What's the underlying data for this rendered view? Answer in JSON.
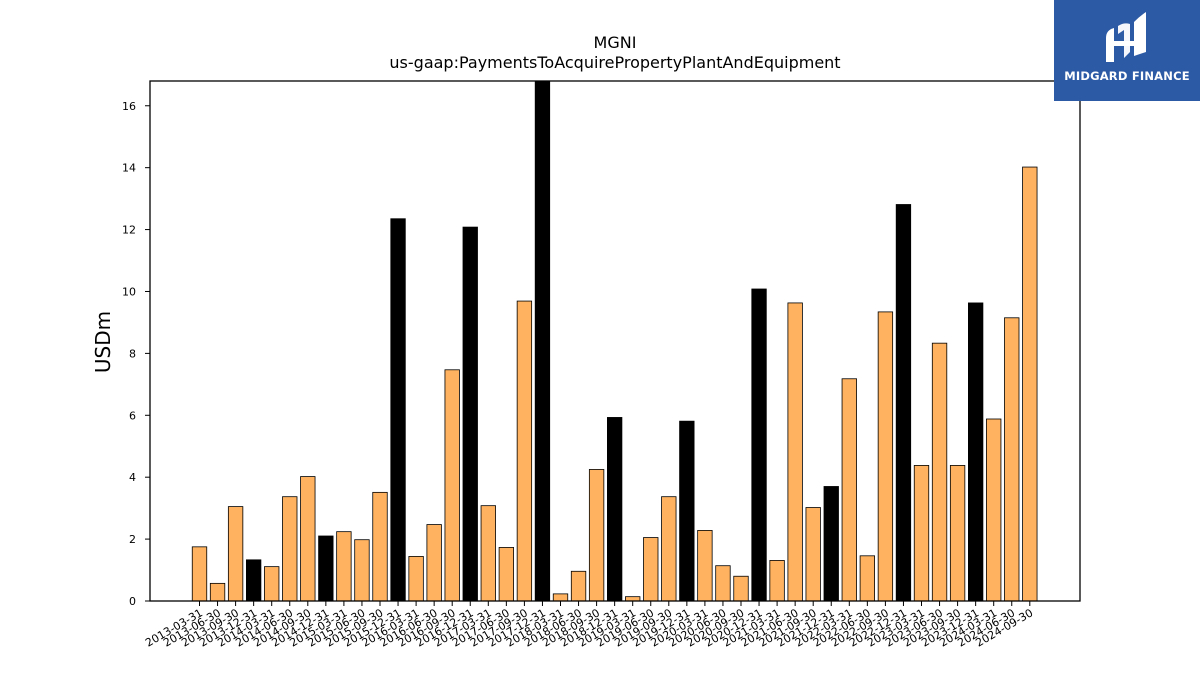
{
  "brand": {
    "name": "MIDGARD FINANCE",
    "bg_color": "#2d5aa5"
  },
  "colors": {
    "annual": "#000000",
    "quarterly": "#ffb361",
    "edge": "#000000"
  },
  "chart_data": {
    "type": "bar",
    "title": "MGNI",
    "subtitle": "us-gaap:PaymentsToAcquirePropertyPlantAndEquipment",
    "xlabel": "",
    "ylabel": "USDm",
    "ylim": [
      0,
      16.8
    ],
    "yticks": [
      0,
      2,
      4,
      6,
      8,
      10,
      12,
      14,
      16
    ],
    "grid": false,
    "categories": [
      "2013-03-31",
      "2013-06-30",
      "2013-09-30",
      "2013-12-31",
      "2014-03-31",
      "2014-06-30",
      "2014-09-30",
      "2014-12-31",
      "2015-03-31",
      "2015-06-30",
      "2015-09-30",
      "2015-12-31",
      "2016-03-31",
      "2016-06-30",
      "2016-09-30",
      "2016-12-31",
      "2017-03-31",
      "2017-06-30",
      "2017-09-30",
      "2017-12-31",
      "2018-03-31",
      "2018-06-30",
      "2018-09-30",
      "2018-12-31",
      "2019-03-31",
      "2019-06-30",
      "2019-09-30",
      "2019-12-31",
      "2020-03-31",
      "2020-06-30",
      "2020-09-30",
      "2020-12-31",
      "2021-03-31",
      "2021-06-30",
      "2021-09-30",
      "2021-12-31",
      "2022-03-31",
      "2022-06-30",
      "2022-09-30",
      "2022-12-31",
      "2023-03-31",
      "2023-06-30",
      "2023-09-30",
      "2023-12-31",
      "2024-03-31",
      "2024-06-30",
      "2024-09-30"
    ],
    "values": [
      1.75,
      0.57,
      3.05,
      1.33,
      1.11,
      3.37,
      4.02,
      2.1,
      2.24,
      1.98,
      3.51,
      12.35,
      1.44,
      2.47,
      7.47,
      12.08,
      3.08,
      1.73,
      9.69,
      16.8,
      0.23,
      0.96,
      4.25,
      5.93,
      0.14,
      2.05,
      3.37,
      5.81,
      2.28,
      1.14,
      0.8,
      10.08,
      1.31,
      9.63,
      3.02,
      3.7,
      7.18,
      1.46,
      9.34,
      12.81,
      4.38,
      8.33,
      4.38,
      9.63,
      5.88,
      9.15,
      14.02
    ],
    "annual_flags": [
      false,
      false,
      false,
      true,
      false,
      false,
      false,
      true,
      false,
      false,
      false,
      true,
      false,
      false,
      false,
      true,
      false,
      false,
      false,
      true,
      false,
      false,
      false,
      true,
      false,
      false,
      false,
      true,
      false,
      false,
      false,
      true,
      false,
      false,
      false,
      true,
      false,
      false,
      false,
      true,
      false,
      false,
      false,
      true,
      false,
      false,
      false
    ]
  }
}
